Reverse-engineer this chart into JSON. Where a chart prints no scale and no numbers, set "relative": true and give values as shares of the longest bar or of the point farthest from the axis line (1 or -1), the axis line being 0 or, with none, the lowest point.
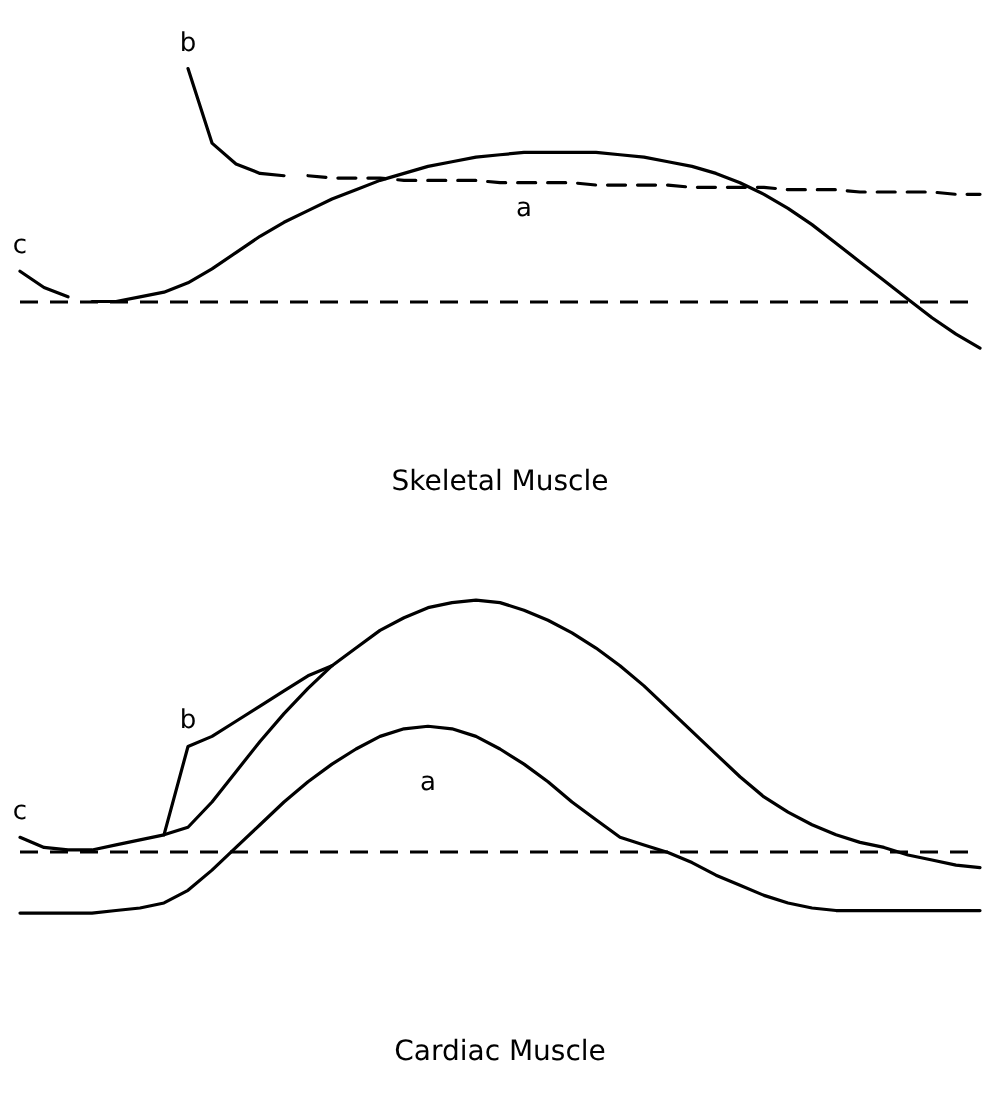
{
  "chart_data": [
    {
      "type": "line",
      "title": "Skeletal Muscle",
      "relative": true,
      "marker": "none",
      "categories": [
        null,
        null,
        null,
        null,
        null,
        null,
        null,
        null,
        null,
        null,
        null,
        null,
        null,
        null,
        null,
        null,
        null,
        null,
        null,
        null,
        null,
        null,
        null,
        null,
        null,
        null,
        null,
        null,
        null,
        null,
        null,
        null,
        null,
        null,
        null,
        null,
        null,
        null,
        null,
        null,
        null
      ],
      "series": [
        {
          "name": "a",
          "color": "#000000",
          "line_style": "solid",
          "values": [
            null,
            null,
            null,
            0,
            0,
            0.02,
            0.04,
            0.08,
            0.14,
            0.21,
            0.28,
            0.34,
            0.39,
            0.44,
            0.48,
            0.52,
            0.55,
            0.58,
            0.6,
            0.62,
            0.63,
            0.64,
            0.64,
            0.64,
            0.64,
            0.63,
            0.62,
            0.6,
            0.58,
            0.55,
            0.51,
            0.46,
            0.4,
            0.33,
            0.25,
            0.17,
            0.09,
            0.01,
            -0.07,
            -0.14,
            -0.2
          ]
        },
        {
          "name": "b",
          "color": "#000000",
          "line_style": "solid",
          "values": [
            null,
            null,
            null,
            null,
            null,
            null,
            null,
            1,
            0.68,
            0.59,
            0.55,
            0.54,
            null,
            null,
            null,
            null,
            null,
            null,
            null,
            null,
            null,
            null,
            null,
            null,
            null,
            null,
            null,
            null,
            null,
            null,
            null,
            null,
            null,
            null,
            null,
            null,
            null,
            null,
            null,
            null,
            null
          ]
        },
        {
          "name": "c",
          "color": "#000000",
          "line_style": "solid",
          "values": [
            0.13,
            0.06,
            0.02,
            null,
            null,
            null,
            null,
            null,
            null,
            null,
            null,
            null,
            null,
            null,
            null,
            null,
            null,
            null,
            null,
            null,
            null,
            null,
            null,
            null,
            null,
            null,
            null,
            null,
            null,
            null,
            null,
            null,
            null,
            null,
            null,
            null,
            null,
            null,
            null,
            null,
            null
          ]
        },
        {
          "color": "#000000",
          "line_style": "dashed",
          "values": [
            null,
            null,
            null,
            null,
            null,
            null,
            null,
            null,
            null,
            null,
            null,
            null,
            0.54,
            0.53,
            0.53,
            0.53,
            0.52,
            0.52,
            0.52,
            0.52,
            0.51,
            0.51,
            0.51,
            0.51,
            0.5,
            0.5,
            0.5,
            0.5,
            0.49,
            0.49,
            0.49,
            0.49,
            0.48,
            0.48,
            0.48,
            0.47,
            0.47,
            0.47,
            0.47,
            0.46,
            0.46
          ]
        }
      ],
      "ref_lines": [
        {
          "axis": "y",
          "value": 0,
          "line_style": "dashed",
          "color": "#000000"
        }
      ]
    },
    {
      "type": "line",
      "title": "Cardiac Muscle",
      "relative": true,
      "marker": "none",
      "categories": [
        null,
        null,
        null,
        null,
        null,
        null,
        null,
        null,
        null,
        null,
        null,
        null,
        null,
        null,
        null,
        null,
        null,
        null,
        null,
        null,
        null,
        null,
        null,
        null,
        null,
        null,
        null,
        null,
        null,
        null,
        null,
        null,
        null,
        null,
        null,
        null,
        null,
        null,
        null,
        null,
        null
      ],
      "series": [
        {
          "name": "a",
          "color": "#000000",
          "line_style": "solid",
          "values": [
            -0.24,
            -0.24,
            -0.24,
            -0.24,
            -0.23,
            -0.22,
            -0.2,
            -0.15,
            -0.07,
            0.02,
            0.11,
            0.2,
            0.28,
            0.35,
            0.41,
            0.46,
            0.49,
            0.5,
            0.49,
            0.46,
            0.41,
            0.35,
            0.28,
            0.2,
            0.13,
            0.06,
            0.03,
            0,
            -0.04,
            -0.09,
            -0.13,
            -0.17,
            -0.2,
            -0.22,
            -0.23,
            -0.23,
            -0.23,
            -0.23,
            -0.23,
            -0.23,
            -0.23
          ]
        },
        {
          "name": "b",
          "color": "#000000",
          "line_style": "solid",
          "values": [
            null,
            null,
            null,
            null,
            null,
            null,
            0.07,
            0.42,
            0.46,
            0.52,
            0.58,
            0.64,
            0.7,
            0.74,
            null,
            null,
            null,
            null,
            null,
            null,
            null,
            null,
            null,
            null,
            null,
            null,
            null,
            null,
            null,
            null,
            null,
            null,
            null,
            null,
            null,
            null,
            null,
            null,
            null,
            null,
            null
          ]
        },
        {
          "name": "c",
          "color": "#000000",
          "line_style": "solid",
          "values": [
            0.06,
            0.02,
            0.01,
            0.01,
            0.03,
            0.05,
            0.07,
            0.1,
            0.2,
            0.32,
            0.44,
            0.55,
            0.65,
            0.74,
            0.81,
            0.88,
            0.93,
            0.97,
            0.99,
            1,
            0.99,
            0.96,
            0.92,
            0.87,
            0.81,
            0.74,
            0.66,
            0.57,
            0.48,
            0.39,
            0.3,
            0.22,
            0.16,
            0.11,
            0.07,
            0.04,
            0.02,
            -0.01,
            -0.03,
            -0.05,
            -0.06
          ]
        }
      ],
      "ref_lines": [
        {
          "axis": "y",
          "value": 0,
          "line_style": "dashed",
          "color": "#000000"
        }
      ]
    }
  ]
}
